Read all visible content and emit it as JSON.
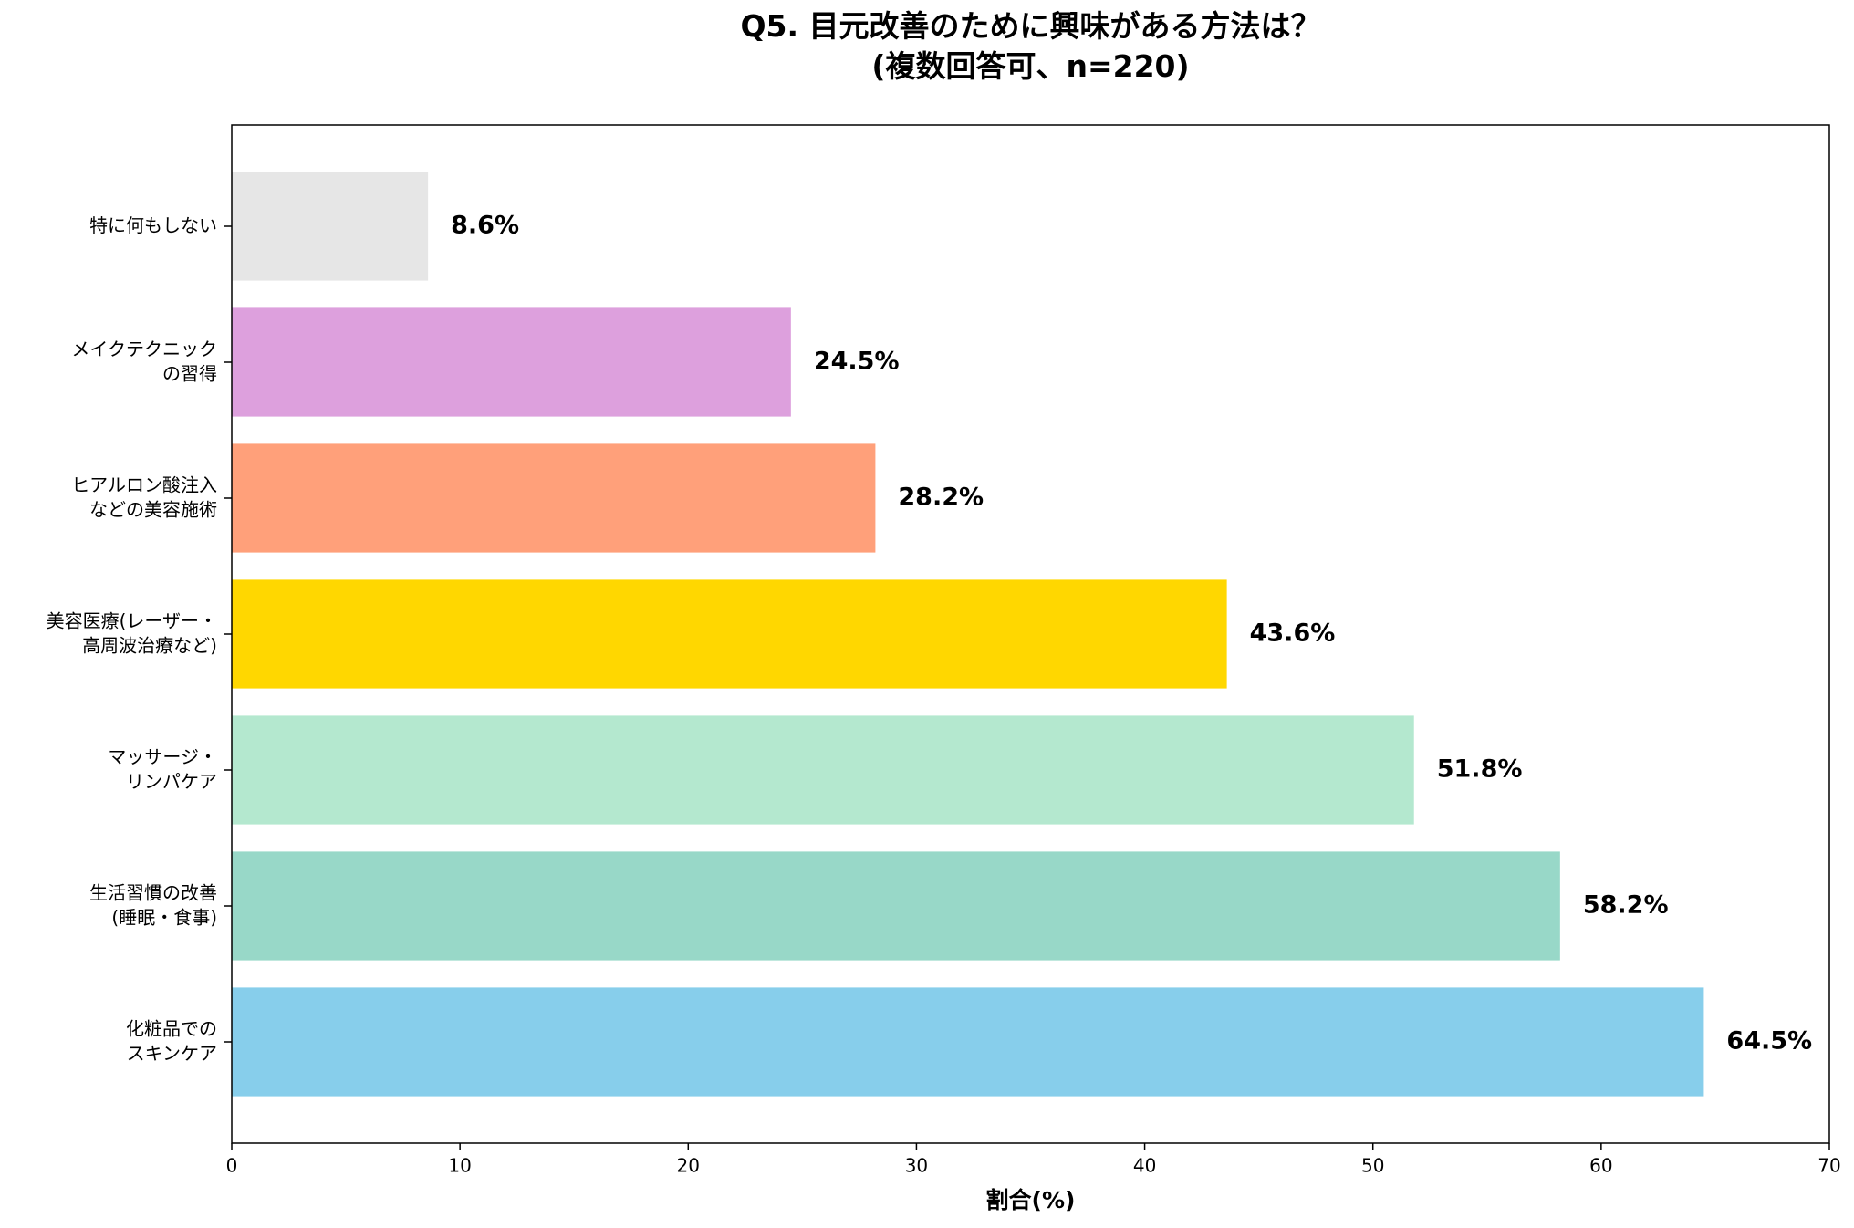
{
  "chart_data": {
    "type": "barh",
    "title": "Q5. 目元改善のために興味がある方法は？\n(複数回答可、n=220)",
    "xlabel": "割合(%)",
    "categories": [
      "特に何もしない",
      "メイクテクニック\nの習得",
      "ヒアルロン酸注入\nなどの美容施術",
      "美容医療(レーザー・\n高周波治療など)",
      "マッサージ・\nリンパケア",
      "生活習慣の改善\n(睡眠・食事)",
      "化粧品での\nスキンケア"
    ],
    "values": [
      8.6,
      24.5,
      28.2,
      43.6,
      51.8,
      58.2,
      64.5
    ],
    "value_labels": [
      "8.6%",
      "24.5%",
      "28.2%",
      "43.6%",
      "51.8%",
      "58.2%",
      "64.5%"
    ],
    "colors": [
      "#e6e6e6",
      "#dda0dd",
      "#ffa07a",
      "#ffd700",
      "#b4e8cf",
      "#98d8c8",
      "#87ceeb"
    ],
    "xlim": [
      0,
      70
    ],
    "xticks": [
      0,
      10,
      20,
      30,
      40,
      50,
      60,
      70
    ],
    "grid": false
  }
}
